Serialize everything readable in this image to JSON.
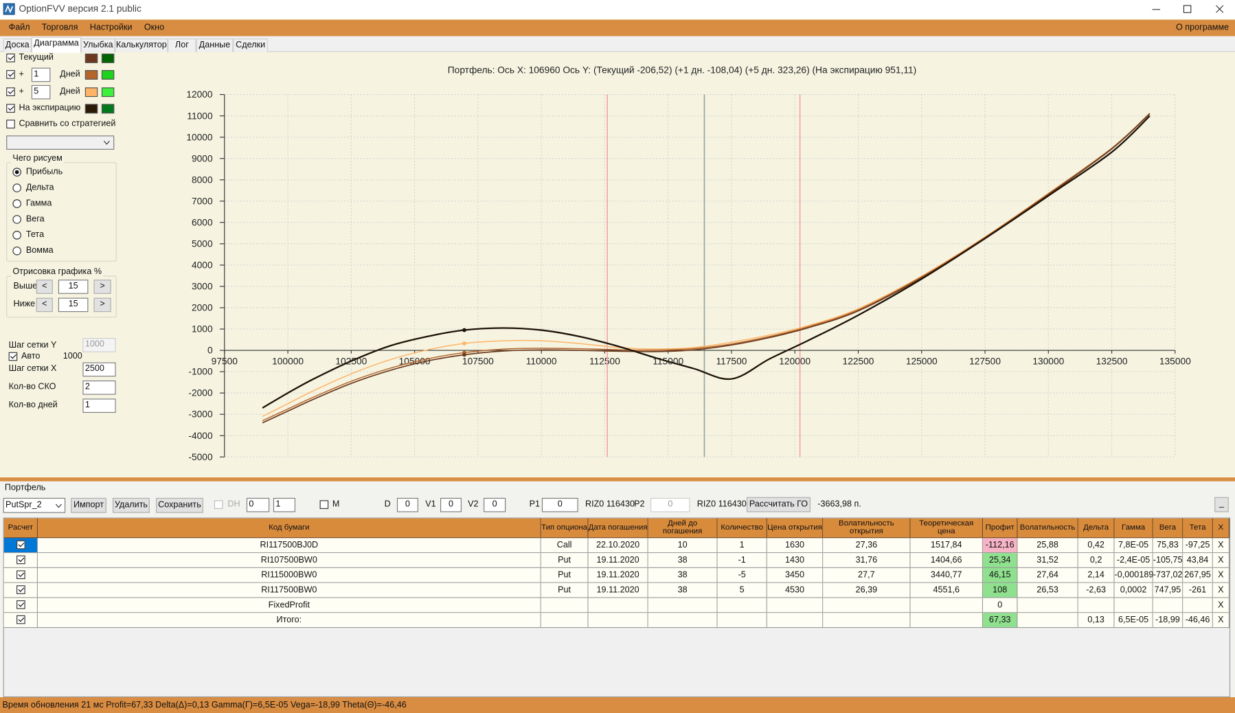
{
  "window": {
    "title": "OptionFVV версия 2.1 public"
  },
  "menu": {
    "items": [
      "Файл",
      "Торговля",
      "Настройки",
      "Окно"
    ],
    "about": "О программе"
  },
  "tabs": {
    "items": [
      "Доска",
      "Диаграмма",
      "Улыбка",
      "Калькулятор",
      "Лог",
      "Данные",
      "Сделки"
    ],
    "active": 1
  },
  "left_panel": {
    "legend": [
      {
        "label": "Текущий",
        "checked": true,
        "swatches": [
          "#6b3a1e",
          "#006400"
        ]
      },
      {
        "prefix": "+",
        "days": "1",
        "unit": "Дней",
        "checked": true,
        "swatches": [
          "#b5652a",
          "#1ed31e"
        ]
      },
      {
        "prefix": "+",
        "days": "5",
        "unit": "Дней",
        "checked": true,
        "swatches": [
          "#ffb366",
          "#3cf03c"
        ]
      },
      {
        "label": "На экспирацию",
        "checked": true,
        "swatches": [
          "#2a1a08",
          "#007a1a"
        ]
      }
    ],
    "compare": {
      "label": "Сравнить со стратегией",
      "checked": false
    },
    "draw_group": {
      "title": "Чего рисуем",
      "options": [
        "Прибыль",
        "Дельта",
        "Гамма",
        "Вега",
        "Тета",
        "Вомма"
      ],
      "selected": 0
    },
    "range_group": {
      "title": "Отрисовка графика %",
      "prev": "<",
      "next": ">",
      "rows": [
        {
          "label": "Выше",
          "value": "15"
        },
        {
          "label": "Ниже",
          "value": "15"
        }
      ]
    },
    "grid_y": {
      "label": "Шаг сетки Y",
      "value": "1000"
    },
    "auto": {
      "label": "Авто",
      "value": "1000",
      "checked": true
    },
    "grid_x": {
      "label": "Шаг сетки X",
      "value": "2500"
    },
    "sko": {
      "label": "Кол-во СКО",
      "value": "2"
    },
    "days": {
      "label": "Кол-во дней",
      "value": "1"
    }
  },
  "chart": {
    "type": "line",
    "title": "Портфель: Ось X: 106960 Ось Y:  (Текущий -206,52)  (+1 дн. -108,04)  (+5 дн. 323,26)  (На экспирацию 951,11)",
    "cursor": {
      "x": 106960
    },
    "x": [
      99000,
      100000,
      101000,
      102500,
      104000,
      105500,
      106960,
      108500,
      110000,
      111500,
      113000,
      114500,
      116000,
      117500,
      119000,
      120500,
      122500,
      125000,
      127500,
      130000,
      132500,
      134000
    ],
    "xlim": [
      97500,
      135000
    ],
    "xticks": [
      97500,
      100000,
      102500,
      105000,
      107500,
      110000,
      112500,
      115000,
      117500,
      120000,
      122500,
      125000,
      127500,
      130000,
      132500,
      135000
    ],
    "ylim": [
      -5000,
      12000
    ],
    "yticks": [
      -5000,
      -4000,
      -3000,
      -2000,
      -1000,
      0,
      1000,
      2000,
      3000,
      4000,
      5000,
      6000,
      7000,
      8000,
      9000,
      10000,
      11000,
      12000
    ],
    "grid": true,
    "vlines": [
      {
        "value": 112600,
        "color": "#f2a6a6"
      },
      {
        "value": 116430,
        "color": "#98a4a4"
      },
      {
        "value": 120200,
        "color": "#f2a6a6"
      }
    ],
    "series": [
      {
        "color": "#ffb366",
        "width": 1.3,
        "values": [
          -3100,
          -2500,
          -1900,
          -1100,
          -450,
          20,
          323.26,
          450,
          450,
          320,
          140,
          60,
          130,
          380,
          720,
          1150,
          1950,
          3480,
          5320,
          7360,
          9480,
          11100
        ]
      },
      {
        "color": "#b5652a",
        "width": 1.3,
        "values": [
          -3300,
          -2750,
          -2200,
          -1450,
          -850,
          -400,
          -108.04,
          60,
          100,
          80,
          30,
          10,
          80,
          300,
          650,
          1100,
          1900,
          3450,
          5300,
          7350,
          9480,
          11120
        ]
      },
      {
        "color": "#6b3a1e",
        "width": 1.5,
        "values": [
          -3400,
          -2850,
          -2300,
          -1550,
          -950,
          -500,
          -206.52,
          -30,
          20,
          0,
          -40,
          -60,
          20,
          250,
          600,
          1050,
          1850,
          3400,
          5250,
          7300,
          9450,
          11100
        ]
      },
      {
        "color": "#1e1208",
        "width": 2,
        "values": [
          -2700,
          -2000,
          -1350,
          -500,
          200,
          650,
          951.11,
          1050,
          950,
          650,
          200,
          -350,
          -850,
          -1340,
          -400,
          450,
          1650,
          3350,
          5250,
          7250,
          9300,
          11000
        ]
      }
    ]
  },
  "portfolio": {
    "title": "Портфель",
    "combo": "PutSpr_2",
    "buttons": [
      "Импорт",
      "Удалить",
      "Сохранить"
    ],
    "dh": "DH",
    "spin1": "0",
    "spin2": "1",
    "m": "M",
    "fields": [
      {
        "label": "D",
        "value": "0"
      },
      {
        "label": "V1",
        "value": "0"
      },
      {
        "label": "V2",
        "value": "0"
      },
      {
        "label": "P1",
        "value": "0"
      }
    ],
    "ticker1": "RIZ0 116430",
    "p2": {
      "label": "P2",
      "value": "0"
    },
    "ticker2": "RIZ0 116430",
    "calc": "Рассчитать ГО",
    "margin": "-3663,98 п.",
    "minimize": "_"
  },
  "table": {
    "columns": [
      "Расчет",
      "Код бумаги",
      "Тип опциона",
      "Дата погашения",
      "Дней до погашения",
      "Количество",
      "Цена открытия",
      "Волатильность открытия",
      "Теоретическая цена",
      "Профит",
      "Волатильность",
      "Дельта",
      "Гамма",
      "Вега",
      "Тета",
      "X"
    ],
    "selected_row": 0,
    "rows": [
      {
        "checked": true,
        "profit_color": "#f7b4c6",
        "cells": [
          "RI117500BJ0D",
          "Call",
          "22.10.2020",
          "10",
          "1",
          "1630",
          "27,36",
          "1517,84",
          "-112,16",
          "25,88",
          "0,42",
          "7,8E-05",
          "75,83",
          "-97,25",
          "X"
        ]
      },
      {
        "checked": true,
        "profit_color": "#8fe08f",
        "cells": [
          "RI107500BW0",
          "Put",
          "19.11.2020",
          "38",
          "-1",
          "1430",
          "31,76",
          "1404,66",
          "25,34",
          "31,52",
          "0,2",
          "-2,4E-05",
          "-105,75",
          "43,84",
          "X"
        ]
      },
      {
        "checked": true,
        "profit_color": "#8fe08f",
        "cells": [
          "RI115000BW0",
          "Put",
          "19.11.2020",
          "38",
          "-5",
          "3450",
          "27,7",
          "3440,77",
          "46,15",
          "27,64",
          "2,14",
          "-0,000189",
          "-737,02",
          "267,95",
          "X"
        ]
      },
      {
        "checked": true,
        "profit_color": "#8fe08f",
        "cells": [
          "RI117500BW0",
          "Put",
          "19.11.2020",
          "38",
          "5",
          "4530",
          "26,39",
          "4551,6",
          "108",
          "26,53",
          "-2,63",
          "0,0002",
          "747,95",
          "-261",
          "X"
        ]
      },
      {
        "checked": true,
        "profit_color": null,
        "cells": [
          "FixedProfit",
          null,
          null,
          null,
          null,
          null,
          null,
          null,
          "0",
          null,
          null,
          null,
          null,
          null,
          "X"
        ]
      },
      {
        "checked": true,
        "profit_color": "#8fe08f",
        "cells": [
          "Итого:",
          null,
          null,
          null,
          null,
          null,
          null,
          null,
          "67,33",
          null,
          "0,13",
          "6,5E-05",
          "-18,99",
          "-46,46",
          "X"
        ]
      }
    ]
  },
  "status": "Время обновления 21 мс   Profit=67,33 Delta(Δ)=0,13 Gamma(Г)=6,5E-05 Vega=-18,99 Theta(Θ)=-46,46"
}
